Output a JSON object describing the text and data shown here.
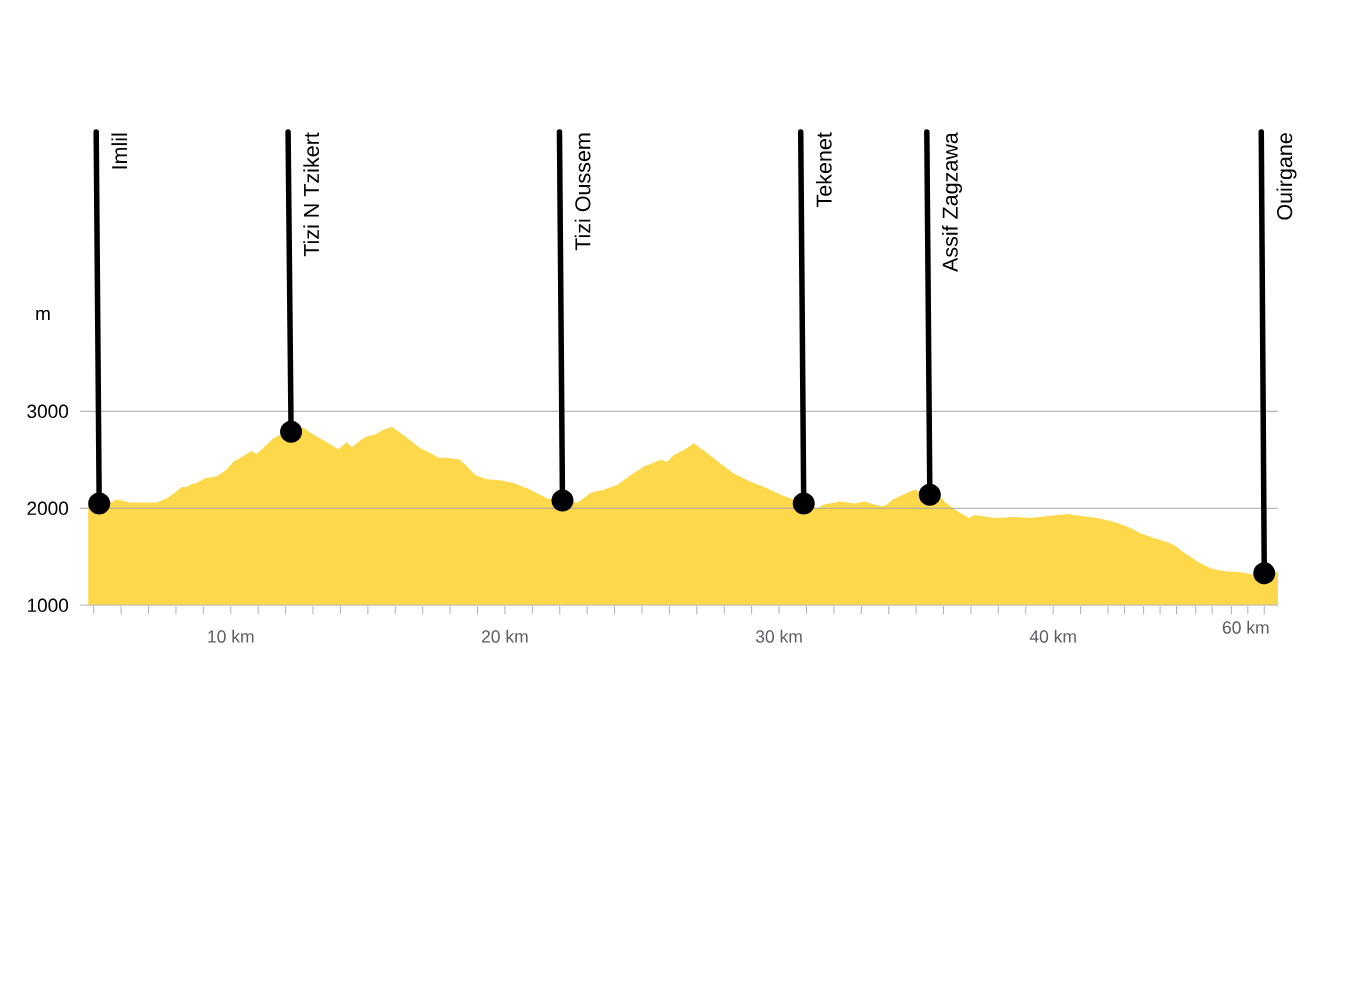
{
  "chart_data": {
    "type": "area",
    "ylabel": "m",
    "color": "#fdd84b",
    "grid": "y",
    "xlim": [
      4.5,
      48.2
    ],
    "ylim": [
      1000,
      3000
    ],
    "xticks": [
      {
        "value": 5,
        "label": null
      },
      {
        "value": 6,
        "label": null
      },
      {
        "value": 7,
        "label": null
      },
      {
        "value": 8,
        "label": null
      },
      {
        "value": 9,
        "label": null
      },
      {
        "value": 10,
        "label": "10 km"
      },
      {
        "value": 11,
        "label": null
      },
      {
        "value": 12,
        "label": null
      },
      {
        "value": 13,
        "label": null
      },
      {
        "value": 14,
        "label": null
      },
      {
        "value": 15,
        "label": null
      },
      {
        "value": 16,
        "label": null
      },
      {
        "value": 17,
        "label": null
      },
      {
        "value": 18,
        "label": null
      },
      {
        "value": 19,
        "label": null
      },
      {
        "value": 20,
        "label": "20 km"
      },
      {
        "value": 21,
        "label": null
      },
      {
        "value": 22,
        "label": null
      },
      {
        "value": 23,
        "label": null
      },
      {
        "value": 24,
        "label": null
      },
      {
        "value": 25,
        "label": null
      },
      {
        "value": 26,
        "label": null
      },
      {
        "value": 27,
        "label": null
      },
      {
        "value": 28,
        "label": null
      },
      {
        "value": 29,
        "label": null
      },
      {
        "value": 30,
        "label": "30 km"
      },
      {
        "value": 31,
        "label": null
      },
      {
        "value": 32,
        "label": null
      },
      {
        "value": 33,
        "label": null
      },
      {
        "value": 34,
        "label": null
      },
      {
        "value": 35,
        "label": null
      },
      {
        "value": 36,
        "label": null
      },
      {
        "value": 37,
        "label": null
      },
      {
        "value": 38,
        "label": null
      },
      {
        "value": 39,
        "label": null
      },
      {
        "value": 40,
        "label": "40 km"
      },
      {
        "value": 41,
        "label": null
      },
      {
        "value": 42,
        "label": null
      },
      {
        "value": 42.6,
        "label": null
      },
      {
        "value": 43.3,
        "label": null
      },
      {
        "value": 43.9,
        "label": null
      },
      {
        "value": 44.5,
        "label": null
      },
      {
        "value": 45.2,
        "label": null
      },
      {
        "value": 45.8,
        "label": null
      },
      {
        "value": 46.5,
        "label": null
      },
      {
        "value": 47.1,
        "label": null
      },
      {
        "value": 47.7,
        "label": null
      }
    ],
    "yticks": [
      1000,
      2000,
      3000
    ],
    "x": [
      4.8,
      5.71,
      5.83,
      6.32,
      7.29,
      7.66,
      7.96,
      8.21,
      8.39,
      8.57,
      8.75,
      9.06,
      9.49,
      9.85,
      10.09,
      10.46,
      10.76,
      10.95,
      11.25,
      11.55,
      11.8,
      12.65,
      13.01,
      13.5,
      13.93,
      14.23,
      14.42,
      14.72,
      14.96,
      15.27,
      15.57,
      15.88,
      16.18,
      16.55,
      16.91,
      17.28,
      17.58,
      17.89,
      18.37,
      18.62,
      18.92,
      19.35,
      19.83,
      20.32,
      20.93,
      21.54,
      22.65,
      22.87,
      23.12,
      23.6,
      24.09,
      24.58,
      25.07,
      25.68,
      25.92,
      26.16,
      26.53,
      26.89,
      27.38,
      27.87,
      28.35,
      28.84,
      29.45,
      30.06,
      31.4,
      31.64,
      32.25,
      32.74,
      33.1,
      33.71,
      33.89,
      34.15,
      34.44,
      34.93,
      35.95,
      36.02,
      36.51,
      36.94,
      37.12,
      37.61,
      37.97,
      38.58,
      39.19,
      39.8,
      40.53,
      41.02,
      41.63,
      42.23,
      42.72,
      43.21,
      43.69,
      44.18,
      44.42,
      44.79,
      45.28,
      45.76,
      46.25,
      46.86,
      47.22,
      48.2
    ],
    "values": [
      2030,
      2070,
      2090,
      2060,
      2060,
      2100,
      2160,
      2220,
      2220,
      2250,
      2260,
      2310,
      2330,
      2400,
      2480,
      2540,
      2590,
      2560,
      2640,
      2720,
      2760,
      2830,
      2760,
      2680,
      2610,
      2680,
      2630,
      2700,
      2740,
      2760,
      2810,
      2840,
      2780,
      2700,
      2620,
      2570,
      2520,
      2520,
      2500,
      2430,
      2340,
      2300,
      2290,
      2260,
      2190,
      2100,
      2060,
      2100,
      2160,
      2190,
      2240,
      2340,
      2430,
      2500,
      2480,
      2550,
      2600,
      2670,
      2570,
      2460,
      2360,
      2290,
      2220,
      2140,
      2000,
      2040,
      2070,
      2050,
      2070,
      2020,
      2030,
      2090,
      2130,
      2190,
      2100,
      2070,
      1970,
      1900,
      1930,
      1910,
      1900,
      1910,
      1900,
      1920,
      1940,
      1920,
      1900,
      1860,
      1810,
      1740,
      1690,
      1650,
      1620,
      1540,
      1450,
      1380,
      1350,
      1340,
      1320,
      1340
    ],
    "annotations": [
      {
        "text": "Imlil",
        "x": 5.2,
        "y": 2050
      },
      {
        "text": "Tizi N Tzikert",
        "x": 12.2,
        "y": 2790
      },
      {
        "text": "Tizi Oussem",
        "x": 22.1,
        "y": 2080
      },
      {
        "text": "Tekenet",
        "x": 30.9,
        "y": 2050
      },
      {
        "text": "Assif Zagzawa",
        "x": 35.5,
        "y": 2140
      },
      {
        "text": "Ouirgane",
        "x": 47.7,
        "y": 1330
      },
      "60 km"
    ]
  }
}
